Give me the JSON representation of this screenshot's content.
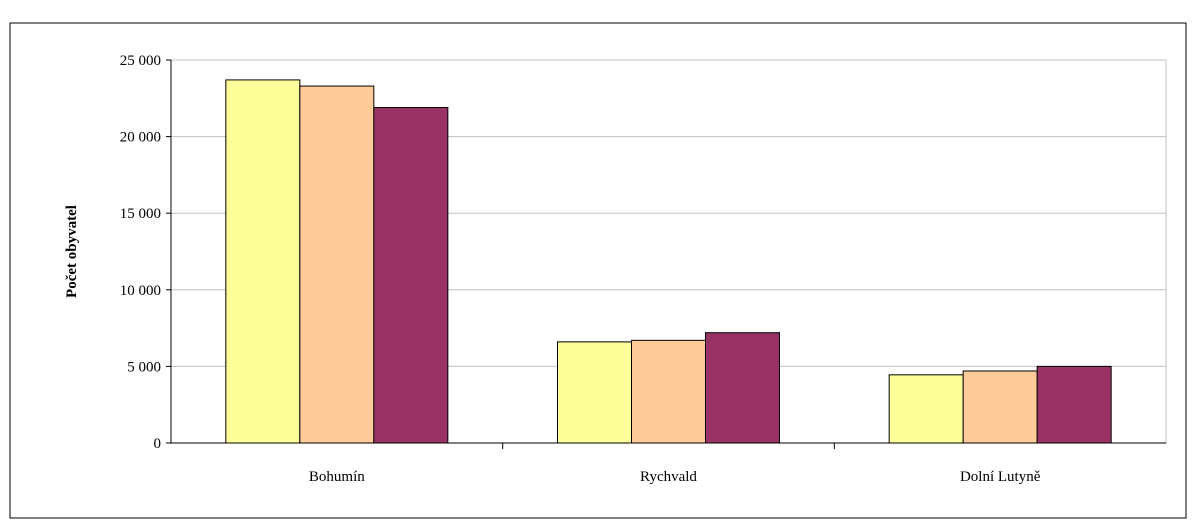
{
  "chart_data": {
    "type": "bar",
    "title": "",
    "xlabel": "",
    "ylabel": "Počet obyvatel",
    "categories": [
      "Bohumín",
      "Rychvald",
      "Dolní Lutyně"
    ],
    "series": [
      {
        "values": [
          23700,
          6600,
          4450
        ]
      },
      {
        "values": [
          23300,
          6700,
          4700
        ]
      },
      {
        "values": [
          21900,
          7200,
          5000
        ]
      }
    ],
    "series_colors": [
      "#FFFF99",
      "#FFCC99",
      "#993366"
    ],
    "ylim": [
      0,
      25000
    ],
    "yticks": [
      0,
      5000,
      10000,
      15000,
      20000,
      25000
    ],
    "ytick_labels": [
      "0",
      "5 000",
      "10 000",
      "15 000",
      "20 000",
      "25 000"
    ],
    "grid": true,
    "legend": "none"
  }
}
